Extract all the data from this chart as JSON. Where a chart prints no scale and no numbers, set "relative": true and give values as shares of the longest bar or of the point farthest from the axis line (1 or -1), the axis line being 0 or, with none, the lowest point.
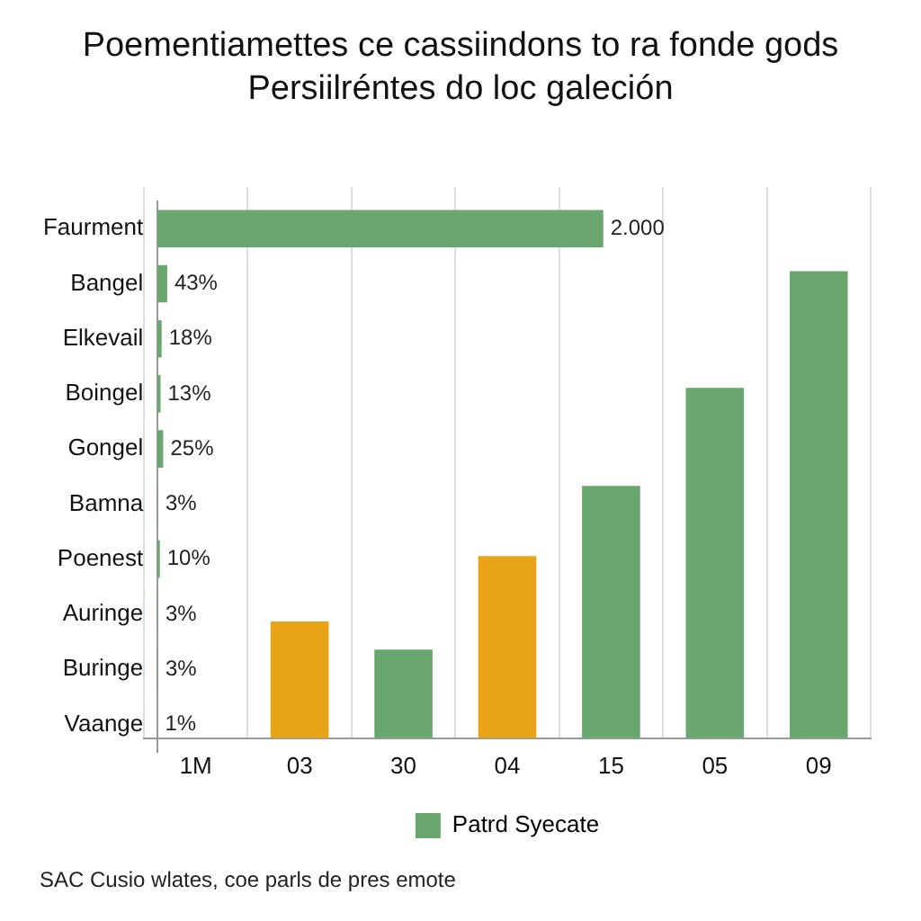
{
  "chart_data": [
    {
      "type": "bar",
      "title": "Poementiamettes ce cassiindons to ra fonde gods",
      "subtitle": "Persiilréntes do loc galeción",
      "orientation": "horizontal",
      "tick_labels": "y",
      "categories": [
        "Faurment",
        "Bangel",
        "Elkevail",
        "Boingel",
        "Gongel",
        "Bamna",
        "Poenest",
        "Auringe",
        "Buringe",
        "Vaange"
      ],
      "series": [
        {
          "color": "#6aa76e",
          "values": [
            2000,
            43,
            18,
            13,
            25,
            3,
            10,
            3,
            3,
            1
          ],
          "value_labels": [
            "2.000",
            "43%",
            "18%",
            "13%",
            "25%",
            "3%",
            "10%",
            "3%",
            "3%",
            "1%"
          ]
        }
      ]
    },
    {
      "type": "bar",
      "relative": true,
      "tick_labels": "x",
      "grid": "x",
      "legend": "bottom",
      "annotations": [
        "SAC Cusio wlates, coe parls de pres emote"
      ],
      "categories": [
        "1M",
        "03",
        "30",
        "04",
        "15",
        "05",
        "09"
      ],
      "series": [
        {
          "name": "Patrd Syecate",
          "color": "#6aa76e",
          "colors": [
            "#6aa76e",
            "#e8a317",
            "#6aa76e",
            "#e8a317",
            "#6aa76e",
            "#6aa76e",
            "#6aa76e"
          ],
          "values": [
            null,
            0.25,
            0.19,
            0.39,
            0.54,
            0.75,
            1
          ]
        }
      ]
    }
  ]
}
